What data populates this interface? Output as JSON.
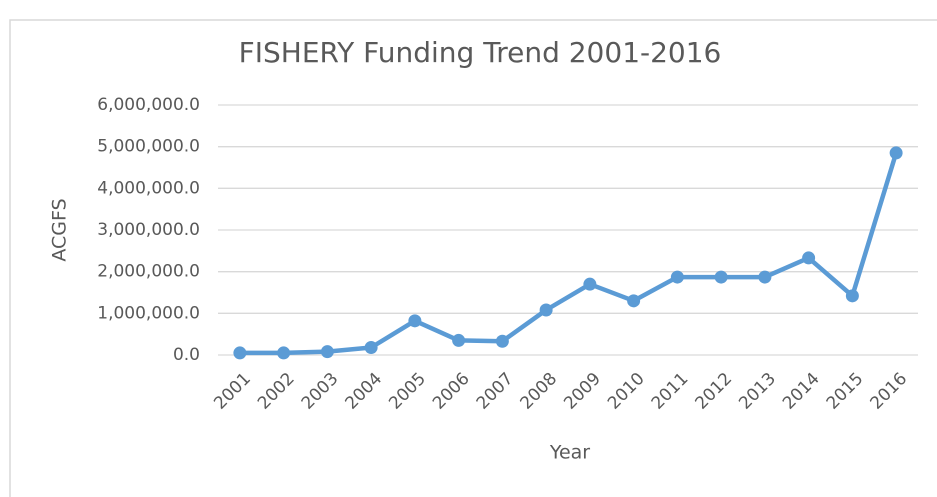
{
  "chart_data": {
    "type": "line",
    "title": "FISHERY Funding Trend 2001-2016",
    "x_label": "Year",
    "y_label": "ACGFS",
    "categories": [
      "2001",
      "2002",
      "2003",
      "2004",
      "2005",
      "2006",
      "2007",
      "2008",
      "2009",
      "2010",
      "2011",
      "2012",
      "2013",
      "2014",
      "2015",
      "2016"
    ],
    "series": [
      {
        "name": "ACGFS",
        "color": "#5b9bd5",
        "values": [
          50000,
          50000,
          80000,
          180000,
          820000,
          350000,
          330000,
          1080000,
          1700000,
          1300000,
          1870000,
          1870000,
          1870000,
          2330000,
          1420000,
          4850000
        ]
      }
    ],
    "ylim": [
      0,
      6000000
    ],
    "yticks": [
      {
        "value": 0,
        "label": "0.0"
      },
      {
        "value": 1000000,
        "label": "1,000,000.0"
      },
      {
        "value": 2000000,
        "label": "2,000,000.0"
      },
      {
        "value": 3000000,
        "label": "3,000,000.0"
      },
      {
        "value": 4000000,
        "label": "4,000,000.0"
      },
      {
        "value": 5000000,
        "label": "5,000,000.0"
      },
      {
        "value": 6000000,
        "label": "6,000,000.0"
      }
    ],
    "grid": true
  }
}
